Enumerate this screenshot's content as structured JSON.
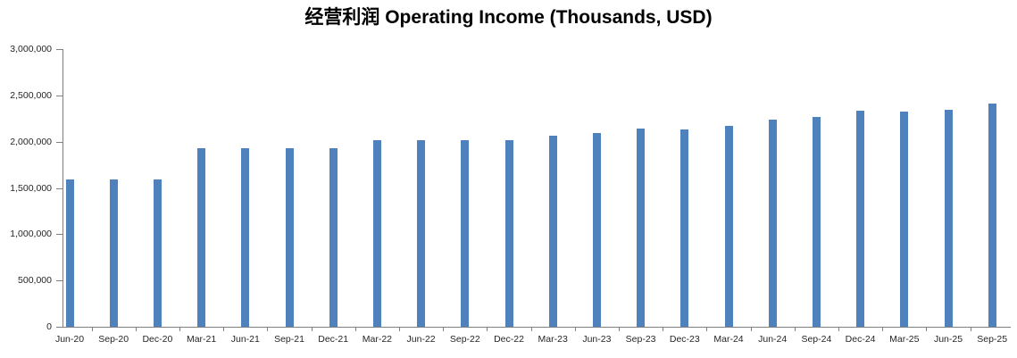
{
  "title": "经营利润 Operating Income (Thousands, USD)",
  "colors": {
    "bar": "#4F81BD",
    "axis": "#808080",
    "tick_label": "#262626",
    "title": "#000000",
    "background": "#FFFFFF"
  },
  "chart_data": {
    "type": "bar",
    "title": "经营利润 Operating Income (Thousands, USD)",
    "categories": [
      "Jun-20",
      "Sep-20",
      "Dec-20",
      "Mar-21",
      "Jun-21",
      "Sep-21",
      "Dec-21",
      "Mar-22",
      "Jun-22",
      "Sep-22",
      "Dec-22",
      "Mar-23",
      "Jun-23",
      "Sep-23",
      "Dec-23",
      "Mar-24",
      "Jun-24",
      "Sep-24",
      "Dec-24",
      "Mar-25",
      "Jun-25",
      "Sep-25"
    ],
    "values": [
      1590000,
      1590000,
      1590000,
      1930000,
      1930000,
      1930000,
      1925000,
      2020000,
      2020000,
      2020000,
      2020000,
      2060000,
      2095000,
      2140000,
      2135000,
      2175000,
      2235000,
      2265000,
      2330000,
      2320000,
      2345000,
      2410000
    ],
    "xlabel": "",
    "ylabel": "",
    "ylim": [
      0,
      3000000
    ],
    "ytick_step": 500000,
    "ytick_labels": [
      "0",
      "500,000",
      "1,000,000",
      "1,500,000",
      "2,000,000",
      "2,500,000",
      "3,000,000"
    ],
    "grid": false,
    "legend": "none",
    "bar_color": "#4F81BD"
  }
}
